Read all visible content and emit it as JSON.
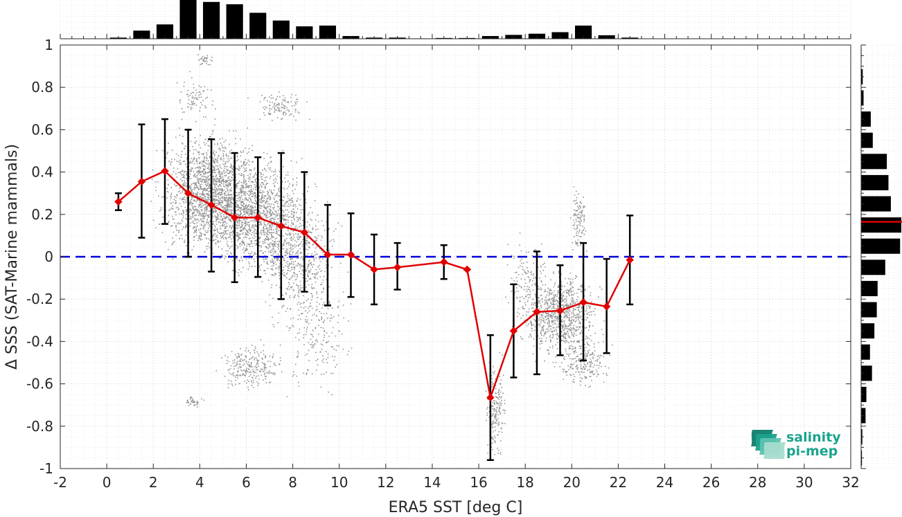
{
  "chart_data": {
    "type": "scatter",
    "xlabel": "ERA5 SST [deg C]",
    "ylabel": "Δ SSS (SAT-Marine mammals)",
    "xlim": [
      -2,
      32
    ],
    "ylim": [
      -1,
      1
    ],
    "x_ticks": [
      "-2",
      "0",
      "2",
      "4",
      "6",
      "8",
      "10",
      "12",
      "14",
      "16",
      "18",
      "20",
      "22",
      "24",
      "26",
      "28",
      "30",
      "32"
    ],
    "y_ticks": [
      "1",
      "0.8",
      "0.6",
      "0.4",
      "0.2",
      "0",
      "-0.2",
      "-0.4",
      "-0.6",
      "-0.8",
      "-1"
    ],
    "grid": true,
    "zero_line": {
      "y": 0,
      "color": "#0000dd",
      "style": "dashed"
    },
    "mean_series": {
      "color": "#e00000",
      "x": [
        0.5,
        1.5,
        2.5,
        3.5,
        4.5,
        5.5,
        6.5,
        7.5,
        8.5,
        9.5,
        10.5,
        11.5,
        12.5,
        14.5,
        15.5,
        16.5,
        17.5,
        18.5,
        19.5,
        20.5,
        21.5,
        22.5
      ],
      "y": [
        0.26,
        0.355,
        0.405,
        0.3,
        0.245,
        0.185,
        0.185,
        0.145,
        0.115,
        0.01,
        0.01,
        -0.06,
        -0.05,
        -0.025,
        -0.06,
        -0.665,
        -0.35,
        -0.26,
        -0.255,
        -0.215,
        -0.235,
        -0.015
      ],
      "err_lo": [
        0.22,
        0.09,
        0.155,
        0.0,
        -0.07,
        -0.12,
        -0.095,
        -0.2,
        -0.165,
        -0.23,
        -0.19,
        -0.225,
        -0.155,
        -0.105,
        -0.06,
        -0.96,
        -0.57,
        -0.555,
        -0.465,
        -0.49,
        -0.455,
        -0.225
      ],
      "err_hi": [
        0.3,
        0.625,
        0.65,
        0.6,
        0.555,
        0.49,
        0.47,
        0.49,
        0.4,
        0.245,
        0.205,
        0.105,
        0.065,
        0.055,
        -0.06,
        -0.37,
        -0.13,
        0.025,
        -0.04,
        0.065,
        -0.01,
        0.195
      ]
    },
    "scatter_color": "#808080",
    "scatter_clusters": [
      {
        "x": 4.5,
        "y": 0.3,
        "sx": 1.6,
        "sy": 0.2,
        "n": 1800
      },
      {
        "x": 6.5,
        "y": 0.2,
        "sx": 1.5,
        "sy": 0.2,
        "n": 1300
      },
      {
        "x": 8.3,
        "y": 0.0,
        "sx": 1.2,
        "sy": 0.22,
        "n": 600
      },
      {
        "x": 6.2,
        "y": -0.52,
        "sx": 1.0,
        "sy": 0.08,
        "n": 250
      },
      {
        "x": 3.8,
        "y": 0.75,
        "sx": 0.6,
        "sy": 0.08,
        "n": 80
      },
      {
        "x": 7.5,
        "y": 0.71,
        "sx": 0.8,
        "sy": 0.05,
        "n": 120
      },
      {
        "x": 16.7,
        "y": -0.72,
        "sx": 0.3,
        "sy": 0.15,
        "n": 200
      },
      {
        "x": 19.5,
        "y": -0.27,
        "sx": 1.2,
        "sy": 0.14,
        "n": 900
      },
      {
        "x": 20.3,
        "y": 0.18,
        "sx": 0.25,
        "sy": 0.12,
        "n": 120
      },
      {
        "x": 20.5,
        "y": -0.5,
        "sx": 0.8,
        "sy": 0.08,
        "n": 220
      },
      {
        "x": 18.0,
        "y": -0.1,
        "sx": 0.6,
        "sy": 0.15,
        "n": 120
      },
      {
        "x": 3.7,
        "y": -0.68,
        "sx": 0.3,
        "sy": 0.02,
        "n": 40
      },
      {
        "x": 4.2,
        "y": 0.93,
        "sx": 0.3,
        "sy": 0.02,
        "n": 30
      },
      {
        "x": 9.0,
        "y": -0.35,
        "sx": 1.2,
        "sy": 0.2,
        "n": 200
      }
    ],
    "top_histogram": {
      "bin_centers": [
        0.5,
        1.5,
        2.5,
        3.5,
        4.5,
        5.5,
        6.5,
        7.5,
        8.5,
        9.5,
        10.5,
        11.5,
        12.5,
        13.5,
        14.5,
        15.5,
        16.5,
        17.5,
        18.5,
        19.5,
        20.5,
        21.5,
        22.5
      ],
      "counts": [
        0.03,
        0.21,
        0.37,
        1.0,
        0.95,
        0.89,
        0.67,
        0.47,
        0.32,
        0.34,
        0.07,
        0.03,
        0.03,
        0.01,
        0.02,
        0.02,
        0.07,
        0.1,
        0.13,
        0.17,
        0.34,
        0.09,
        0.03
      ]
    },
    "right_histogram": {
      "bin_centers": [
        0.95,
        0.85,
        0.75,
        0.65,
        0.55,
        0.45,
        0.35,
        0.25,
        0.15,
        0.05,
        -0.05,
        -0.15,
        -0.25,
        -0.35,
        -0.45,
        -0.55,
        -0.65,
        -0.75,
        -0.85,
        -0.95
      ],
      "counts": [
        0.01,
        0.04,
        0.06,
        0.24,
        0.29,
        0.64,
        0.68,
        0.74,
        1.0,
        0.97,
        0.6,
        0.41,
        0.39,
        0.33,
        0.22,
        0.27,
        0.13,
        0.11,
        0.03,
        0.02
      ],
      "median_line": {
        "y": 0.165,
        "color": "#e00000"
      }
    }
  },
  "logo": {
    "line1": "salinity",
    "line2": "pi-mep",
    "color": "#1aa38c"
  }
}
